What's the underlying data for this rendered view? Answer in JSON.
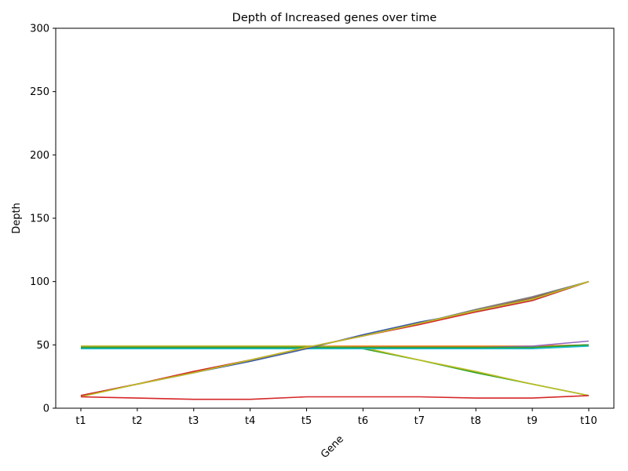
{
  "chart_data": {
    "type": "line",
    "title": "Depth of Increased genes over time",
    "xlabel": "Gene",
    "ylabel": "Depth",
    "categories": [
      "t1",
      "t2",
      "t3",
      "t4",
      "t5",
      "t6",
      "t7",
      "t8",
      "t9",
      "t10"
    ],
    "ylim": [
      0,
      300
    ],
    "yticks": [
      0,
      50,
      100,
      150,
      200,
      250,
      300
    ],
    "grid": false,
    "series": [
      {
        "color": "#1f77b4",
        "values": [
          48,
          48,
          48,
          48,
          48,
          48,
          48,
          48,
          48,
          50
        ]
      },
      {
        "color": "#ff7f0e",
        "values": [
          49,
          49,
          49,
          49,
          49,
          49,
          49,
          49,
          49,
          50
        ]
      },
      {
        "color": "#2ca02c",
        "values": [
          48,
          48,
          48,
          48,
          48,
          47,
          38,
          28,
          19,
          10
        ]
      },
      {
        "color": "#bcbd22",
        "values": [
          49,
          49,
          49,
          49,
          49,
          48,
          38,
          29,
          19,
          10
        ]
      },
      {
        "color": "#9467bd",
        "values": [
          48,
          48,
          48,
          48,
          48,
          48,
          48,
          48,
          49,
          53
        ]
      },
      {
        "color": "#7f7f7f",
        "values": [
          48,
          48,
          48,
          48,
          48,
          48,
          48,
          48,
          48,
          50
        ]
      },
      {
        "color": "#17becf",
        "values": [
          47,
          47,
          47,
          47,
          47,
          47,
          47,
          47,
          47,
          49
        ]
      },
      {
        "color": "#2ca02c",
        "values": [
          48,
          48,
          48,
          48,
          48,
          48,
          48,
          48,
          48,
          50
        ]
      },
      {
        "color": "#3a5aa8",
        "values": [
          10,
          19,
          28,
          37,
          47,
          58,
          68,
          76,
          85,
          100
        ]
      },
      {
        "color": "#8c564b",
        "values": [
          10,
          19,
          28,
          38,
          48,
          57,
          67,
          77,
          87,
          100
        ]
      },
      {
        "color": "#7f7f7f",
        "values": [
          10,
          19,
          29,
          38,
          48,
          57,
          67,
          78,
          88,
          100
        ]
      },
      {
        "color": "#d62728",
        "values": [
          10,
          19,
          29,
          38,
          48,
          57,
          66,
          76,
          85,
          100
        ]
      },
      {
        "color": "#bcbd22",
        "values": [
          9,
          19,
          28,
          38,
          48,
          57,
          67,
          77,
          86,
          100
        ]
      },
      {
        "color": "#d62728",
        "values": [
          9,
          8,
          7,
          7,
          9,
          9,
          9,
          8,
          8,
          10
        ]
      }
    ]
  }
}
